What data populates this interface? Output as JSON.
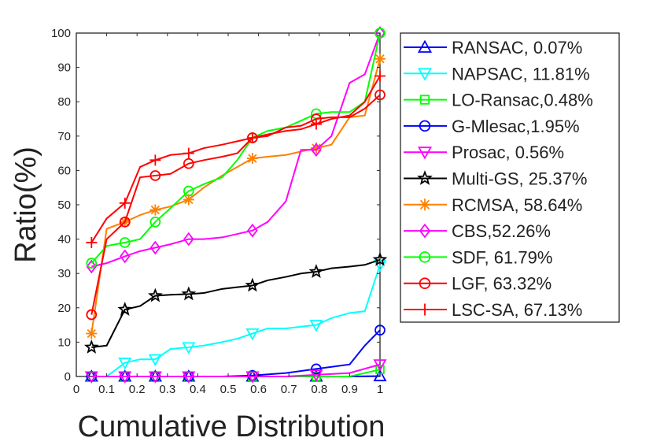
{
  "chart_data": {
    "type": "line",
    "title": "",
    "xlabel": "Cumulative Distribution",
    "ylabel": "Ratio(%)",
    "xlim": [
      0,
      1
    ],
    "ylim": [
      0,
      100
    ],
    "xticks": [
      "0",
      "0.1",
      "0.2",
      "0.3",
      "0.4",
      "0.5",
      "0.6",
      "0.7",
      "0.8",
      "0.9",
      "1"
    ],
    "yticks": [
      "0",
      "10",
      "20",
      "30",
      "40",
      "50",
      "60",
      "70",
      "80",
      "90",
      "100"
    ],
    "legend_position": "right",
    "series": [
      {
        "name": "RANSAC",
        "legend": "RANSAC, 0.07%",
        "color": "#0000ff",
        "marker": "triangle-up",
        "x": [
          0.05,
          0.1,
          0.16,
          0.26,
          0.37,
          0.48,
          0.58,
          0.69,
          0.79,
          0.9,
          1.0
        ],
        "y": [
          0,
          0,
          0,
          0,
          0,
          0,
          0,
          0,
          0,
          0,
          0.1
        ]
      },
      {
        "name": "NAPSAC",
        "legend": "NAPSAC, 11.81%",
        "color": "#00ffff",
        "marker": "triangle-down",
        "x": [
          0.05,
          0.1,
          0.16,
          0.21,
          0.26,
          0.31,
          0.37,
          0.42,
          0.48,
          0.53,
          0.58,
          0.63,
          0.69,
          0.74,
          0.79,
          0.84,
          0.9,
          0.95,
          1.0
        ],
        "y": [
          0,
          0,
          4,
          5,
          5,
          8,
          8.5,
          9,
          10,
          11,
          12.5,
          14,
          14,
          14.5,
          15,
          17,
          18.5,
          19,
          32.5
        ]
      },
      {
        "name": "LO-Ransac",
        "legend": "LO-Ransac,0.48%",
        "color": "#00ff00",
        "marker": "square",
        "x": [
          0.05,
          0.16,
          0.26,
          0.37,
          0.48,
          0.58,
          0.69,
          0.79,
          0.9,
          1.0
        ],
        "y": [
          0,
          0,
          0,
          0,
          0,
          0,
          0,
          0,
          0,
          2
        ]
      },
      {
        "name": "G-Mlesac",
        "legend": "G-Mlesac,1.95%",
        "color": "#0000ff",
        "marker": "circle",
        "x": [
          0.05,
          0.16,
          0.26,
          0.37,
          0.48,
          0.58,
          0.69,
          0.79,
          0.9,
          0.95,
          1.0
        ],
        "y": [
          0,
          0,
          0,
          0,
          0,
          0.3,
          1,
          2.2,
          3.5,
          9,
          13.5
        ]
      },
      {
        "name": "Prosac",
        "legend": "Prosac, 0.56%",
        "color": "#ff00ff",
        "marker": "triangle-down",
        "x": [
          0.05,
          0.16,
          0.26,
          0.37,
          0.48,
          0.58,
          0.69,
          0.79,
          0.9,
          1.0
        ],
        "y": [
          0,
          0,
          0,
          0,
          0,
          0,
          0,
          0.5,
          1,
          3.5
        ]
      },
      {
        "name": "Multi-GS",
        "legend": "Multi-GS, 25.37%",
        "color": "#000000",
        "marker": "star",
        "x": [
          0.05,
          0.1,
          0.16,
          0.21,
          0.26,
          0.31,
          0.37,
          0.42,
          0.48,
          0.53,
          0.58,
          0.63,
          0.69,
          0.74,
          0.79,
          0.84,
          0.9,
          0.95,
          1.0
        ],
        "y": [
          8.5,
          9,
          19.5,
          20.5,
          23.5,
          23.8,
          24,
          24.3,
          25.5,
          26,
          26.5,
          28,
          29,
          30,
          30.5,
          31.5,
          32,
          32.5,
          34
        ]
      },
      {
        "name": "RCMSA",
        "legend": "RCMSA, 58.64%",
        "color": "#ff8000",
        "marker": "asterisk",
        "x": [
          0.05,
          0.1,
          0.16,
          0.21,
          0.26,
          0.31,
          0.37,
          0.42,
          0.48,
          0.53,
          0.58,
          0.63,
          0.69,
          0.74,
          0.79,
          0.84,
          0.9,
          0.95,
          1.0
        ],
        "y": [
          12.5,
          43,
          45,
          47,
          48.5,
          49.5,
          51.5,
          55,
          58.5,
          61,
          63.5,
          64,
          64.5,
          65.5,
          66.5,
          67.5,
          75.5,
          76,
          92.5
        ]
      },
      {
        "name": "CBS",
        "legend": "CBS,52.26%",
        "color": "#ff00ff",
        "marker": "diamond",
        "x": [
          0.05,
          0.1,
          0.16,
          0.21,
          0.26,
          0.31,
          0.37,
          0.42,
          0.48,
          0.53,
          0.58,
          0.63,
          0.69,
          0.74,
          0.79,
          0.84,
          0.9,
          0.95,
          1.0
        ],
        "y": [
          32,
          33,
          35,
          36.5,
          37.5,
          38.5,
          40,
          40,
          40.5,
          41.5,
          42.5,
          45,
          51,
          66,
          66,
          70,
          85.5,
          88,
          100
        ]
      },
      {
        "name": "SDF",
        "legend": "SDF, 61.79%",
        "color": "#00ff00",
        "marker": "circle",
        "x": [
          0.05,
          0.1,
          0.16,
          0.21,
          0.26,
          0.31,
          0.37,
          0.42,
          0.48,
          0.53,
          0.58,
          0.63,
          0.69,
          0.74,
          0.79,
          0.84,
          0.9,
          0.95,
          1.0
        ],
        "y": [
          33,
          38,
          39,
          40,
          45,
          49,
          54,
          56,
          58,
          63,
          69.5,
          71.5,
          72.5,
          74.5,
          76.5,
          77,
          77,
          80,
          100
        ]
      },
      {
        "name": "LGF",
        "legend": "LGF, 63.32%",
        "color": "#ff0000",
        "marker": "circle",
        "x": [
          0.05,
          0.1,
          0.16,
          0.21,
          0.26,
          0.31,
          0.37,
          0.42,
          0.48,
          0.53,
          0.58,
          0.63,
          0.69,
          0.74,
          0.79,
          0.84,
          0.9,
          0.95,
          1.0
        ],
        "y": [
          18,
          40,
          45,
          58,
          58.5,
          59,
          62,
          63,
          64,
          65,
          69.5,
          70,
          72.5,
          73,
          75,
          75.5,
          75.5,
          78,
          82
        ]
      },
      {
        "name": "LSC-SA",
        "legend": "LSC-SA, 67.13%",
        "color": "#ff0000",
        "marker": "plus",
        "x": [
          0.05,
          0.1,
          0.16,
          0.21,
          0.26,
          0.31,
          0.37,
          0.42,
          0.48,
          0.53,
          0.58,
          0.63,
          0.69,
          0.74,
          0.79,
          0.84,
          0.9,
          0.95,
          1.0
        ],
        "y": [
          39,
          46,
          50.5,
          61,
          63,
          64.5,
          65,
          66.5,
          67.5,
          68.5,
          69.5,
          70.5,
          71.5,
          72,
          73.5,
          75,
          76,
          80,
          87.5
        ]
      }
    ]
  }
}
